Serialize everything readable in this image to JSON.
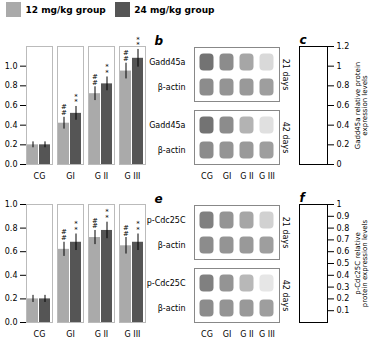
{
  "chart_data": [
    {
      "type": "bar",
      "categories": [
        "CG",
        "GI",
        "G II",
        "G III"
      ],
      "series": [
        {
          "name": "12 mg/kg group",
          "color": "#aaaaaa",
          "values": [
            0.2,
            0.42,
            0.72,
            0.95
          ],
          "errors": [
            0.03,
            0.06,
            0.07,
            0.08
          ],
          "annotations": [
            null,
            "#\n#",
            "#\n#",
            "#\n#"
          ]
        },
        {
          "name": "24 mg/kg group",
          "color": "#555555",
          "values": [
            0.2,
            0.52,
            0.82,
            1.08
          ],
          "errors": [
            0.03,
            0.07,
            0.07,
            0.09
          ],
          "annotations": [
            null,
            "*\n*",
            "*\n*",
            "*\n*"
          ]
        }
      ],
      "ylim": [
        0,
        1.2
      ],
      "yticks": [
        {
          "value": 0,
          "label": "0.0"
        },
        0.2,
        0.4,
        0.6,
        0.8,
        {
          "value": 1,
          "label": "1.0"
        }
      ],
      "legend": "top"
    },
    {
      "type": "heatmap",
      "title": "b",
      "categories": [
        "CG",
        "GI",
        "G II",
        "G III"
      ],
      "panels": [
        {
          "name": "21 days",
          "series": [
            {
              "name": "Gadd45a",
              "values": [
                0.55,
                0.45,
                0.35,
                0.15
              ]
            },
            {
              "name": "β-actin",
              "values": [
                0.45,
                0.42,
                0.4,
                0.38
              ]
            }
          ]
        },
        {
          "name": "42 days",
          "series": [
            {
              "name": "Gadd45a",
              "values": [
                0.55,
                0.45,
                0.3,
                0.12
              ]
            },
            {
              "name": "β-actin",
              "values": [
                0.45,
                0.42,
                0.4,
                0.38
              ]
            }
          ]
        }
      ],
      "zlim": [
        0,
        1
      ]
    },
    {
      "type": "axis",
      "title": "c",
      "ylabel": "Gadd45a relative protein\nexpression levels",
      "ylim": [
        0,
        1.2
      ],
      "yticks": [
        0,
        0.2,
        0.4,
        0.6,
        0.8,
        1,
        1.2
      ]
    },
    {
      "type": "bar",
      "categories": [
        "CG",
        "GI",
        "G II",
        "G III"
      ],
      "series": [
        {
          "name": "12 mg/kg group",
          "color": "#aaaaaa",
          "values": [
            0.2,
            0.62,
            0.72,
            0.65
          ],
          "errors": [
            0.03,
            0.06,
            0.06,
            0.07
          ],
          "annotations": [
            null,
            "#\n#",
            "#\n#",
            "#\n#"
          ]
        },
        {
          "name": "24 mg/kg group",
          "color": "#555555",
          "values": [
            0.2,
            0.68,
            0.78,
            0.68
          ],
          "errors": [
            0.03,
            0.07,
            0.07,
            0.07
          ],
          "annotations": [
            null,
            "*\n*",
            "*\n*",
            "*\n*"
          ]
        }
      ],
      "ylim": [
        0,
        1.0
      ],
      "yticks": [
        {
          "value": 0,
          "label": "0.0"
        },
        0.2,
        0.4,
        0.6,
        0.8,
        {
          "value": 1,
          "label": "1.0"
        }
      ]
    },
    {
      "type": "heatmap",
      "title": "e",
      "categories": [
        "CG",
        "GI",
        "G II",
        "G III"
      ],
      "panels": [
        {
          "name": "21 days",
          "series": [
            {
              "name": "p-Cdc25C",
              "values": [
                0.5,
                0.42,
                0.35,
                0.18
              ]
            },
            {
              "name": "β-actin",
              "values": [
                0.45,
                0.42,
                0.4,
                0.38
              ]
            }
          ]
        },
        {
          "name": "42 days",
          "series": [
            {
              "name": "p-Cdc25C",
              "values": [
                0.5,
                0.42,
                0.28,
                0.1
              ]
            },
            {
              "name": "β-actin",
              "values": [
                0.45,
                0.42,
                0.4,
                0.38
              ]
            }
          ]
        }
      ],
      "zlim": [
        0,
        1
      ]
    },
    {
      "type": "axis",
      "title": "f",
      "ylabel": "p-Cdc25C relative\nprotein expression levels",
      "ylim": [
        0,
        1
      ],
      "yticks": [
        0.1,
        0.2,
        0.3,
        0.4,
        0.5,
        0.6,
        0.7,
        0.8,
        0.9,
        1
      ]
    }
  ]
}
